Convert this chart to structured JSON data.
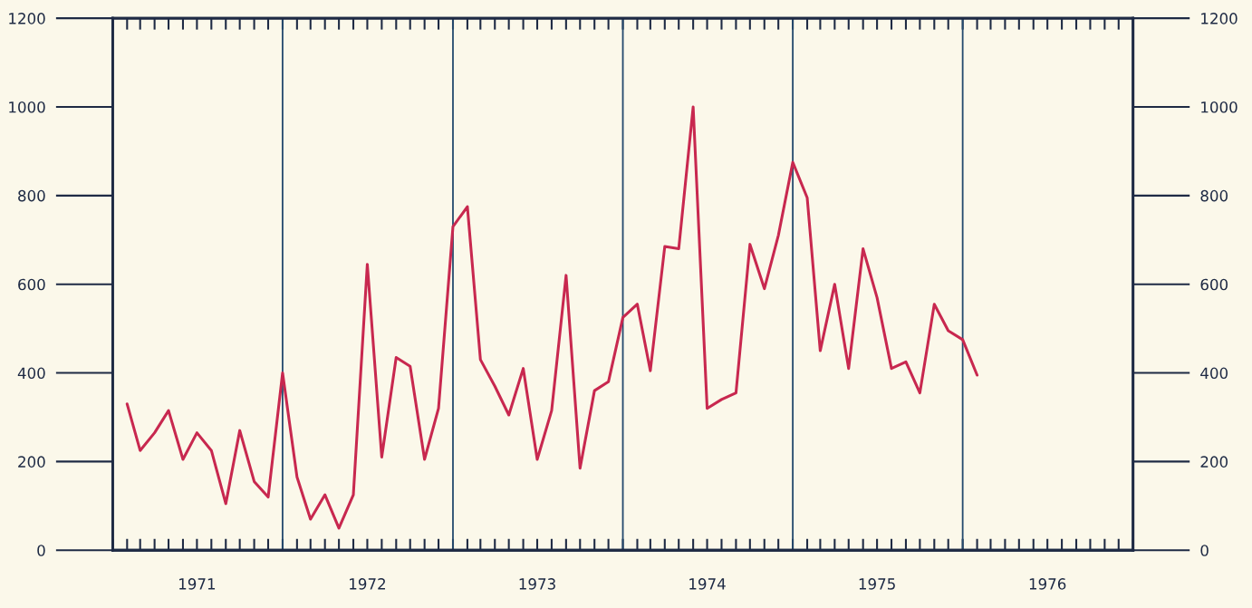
{
  "chart_data": {
    "type": "line",
    "x": [
      "1971-02",
      "1971-03",
      "1971-04",
      "1971-05",
      "1971-06",
      "1971-07",
      "1971-08",
      "1971-09",
      "1971-10",
      "1971-11",
      "1971-12",
      "1972-01",
      "1972-02",
      "1972-03",
      "1972-04",
      "1972-05",
      "1972-06",
      "1972-07",
      "1972-08",
      "1972-09",
      "1972-10",
      "1972-11",
      "1972-12",
      "1973-01",
      "1973-02",
      "1973-03",
      "1973-04",
      "1973-05",
      "1973-06",
      "1973-07",
      "1973-08",
      "1973-09",
      "1973-10",
      "1973-11",
      "1973-12",
      "1974-01",
      "1974-02",
      "1974-03",
      "1974-04",
      "1974-05",
      "1974-06",
      "1974-07",
      "1974-08",
      "1974-09",
      "1974-10",
      "1974-11",
      "1974-12",
      "1975-01",
      "1975-02",
      "1975-03",
      "1975-04",
      "1975-05",
      "1975-06",
      "1975-07",
      "1975-08",
      "1975-09",
      "1975-10",
      "1975-11",
      "1975-12",
      "1976-01",
      "1976-02"
    ],
    "series": [
      {
        "color": "#c8284f",
        "values": [
          330,
          225,
          265,
          315,
          205,
          265,
          225,
          105,
          270,
          155,
          120,
          400,
          165,
          70,
          125,
          50,
          125,
          645,
          210,
          435,
          415,
          205,
          320,
          730,
          775,
          430,
          370,
          305,
          410,
          205,
          315,
          620,
          185,
          360,
          380,
          525,
          555,
          405,
          685,
          680,
          1000,
          320,
          340,
          355,
          690,
          590,
          710,
          875,
          795,
          450,
          600,
          410,
          680,
          570,
          410,
          425,
          355,
          555,
          495,
          475,
          395
        ]
      }
    ],
    "xlim": [
      "1971-01",
      "1977-01"
    ],
    "xticks": [
      {
        "value": "1971-01",
        "label": null
      },
      {
        "value": "1971-02",
        "label": null
      },
      {
        "value": "1971-03",
        "label": null
      },
      {
        "value": "1971-04",
        "label": null
      },
      {
        "value": "1971-05",
        "label": null
      },
      {
        "value": "1971-06",
        "label": null
      },
      {
        "value": "1971-07",
        "label": "1971"
      },
      {
        "value": "1971-08",
        "label": null
      },
      {
        "value": "1971-09",
        "label": null
      },
      {
        "value": "1971-10",
        "label": null
      },
      {
        "value": "1971-11",
        "label": null
      },
      {
        "value": "1971-12",
        "label": null
      },
      {
        "value": "1972-01",
        "label": null
      },
      {
        "value": "1972-02",
        "label": null
      },
      {
        "value": "1972-03",
        "label": null
      },
      {
        "value": "1972-04",
        "label": null
      },
      {
        "value": "1972-05",
        "label": null
      },
      {
        "value": "1972-06",
        "label": null
      },
      {
        "value": "1972-07",
        "label": "1972"
      },
      {
        "value": "1972-08",
        "label": null
      },
      {
        "value": "1972-09",
        "label": null
      },
      {
        "value": "1972-10",
        "label": null
      },
      {
        "value": "1972-11",
        "label": null
      },
      {
        "value": "1972-12",
        "label": null
      },
      {
        "value": "1973-01",
        "label": null
      },
      {
        "value": "1973-02",
        "label": null
      },
      {
        "value": "1973-03",
        "label": null
      },
      {
        "value": "1973-04",
        "label": null
      },
      {
        "value": "1973-05",
        "label": null
      },
      {
        "value": "1973-06",
        "label": null
      },
      {
        "value": "1973-07",
        "label": "1973"
      },
      {
        "value": "1973-08",
        "label": null
      },
      {
        "value": "1973-09",
        "label": null
      },
      {
        "value": "1973-10",
        "label": null
      },
      {
        "value": "1973-11",
        "label": null
      },
      {
        "value": "1973-12",
        "label": null
      },
      {
        "value": "1974-01",
        "label": null
      },
      {
        "value": "1974-02",
        "label": null
      },
      {
        "value": "1974-03",
        "label": null
      },
      {
        "value": "1974-04",
        "label": null
      },
      {
        "value": "1974-05",
        "label": null
      },
      {
        "value": "1974-06",
        "label": null
      },
      {
        "value": "1974-07",
        "label": "1974"
      },
      {
        "value": "1974-08",
        "label": null
      },
      {
        "value": "1974-09",
        "label": null
      },
      {
        "value": "1974-10",
        "label": null
      },
      {
        "value": "1974-11",
        "label": null
      },
      {
        "value": "1974-12",
        "label": null
      },
      {
        "value": "1975-01",
        "label": null
      },
      {
        "value": "1975-02",
        "label": null
      },
      {
        "value": "1975-03",
        "label": null
      },
      {
        "value": "1975-04",
        "label": null
      },
      {
        "value": "1975-05",
        "label": null
      },
      {
        "value": "1975-06",
        "label": null
      },
      {
        "value": "1975-07",
        "label": "1975"
      },
      {
        "value": "1975-08",
        "label": null
      },
      {
        "value": "1975-09",
        "label": null
      },
      {
        "value": "1975-10",
        "label": null
      },
      {
        "value": "1975-11",
        "label": null
      },
      {
        "value": "1975-12",
        "label": null
      },
      {
        "value": "1976-01",
        "label": null
      },
      {
        "value": "1976-02",
        "label": null
      },
      {
        "value": "1976-03",
        "label": null
      },
      {
        "value": "1976-04",
        "label": null
      },
      {
        "value": "1976-05",
        "label": null
      },
      {
        "value": "1976-06",
        "label": null
      },
      {
        "value": "1976-07",
        "label": "1976"
      },
      {
        "value": "1976-08",
        "label": null
      },
      {
        "value": "1976-09",
        "label": null
      },
      {
        "value": "1976-10",
        "label": null
      },
      {
        "value": "1976-11",
        "label": null
      },
      {
        "value": "1976-12",
        "label": null
      },
      {
        "value": "1977-01",
        "label": null
      }
    ],
    "ylim": [
      0,
      1200
    ],
    "yticks": [
      0,
      200,
      400,
      600,
      800,
      1000,
      1200
    ],
    "y2lim": [
      0,
      1200
    ],
    "y2ticks": [
      0,
      200,
      400,
      600,
      800,
      1000,
      1200
    ],
    "ref_lines": [
      {
        "axis": "x",
        "value": "1972-01",
        "color": "#244a6e"
      },
      {
        "axis": "x",
        "value": "1973-01",
        "color": "#244a6e"
      },
      {
        "axis": "x",
        "value": "1974-01",
        "color": "#244a6e"
      },
      {
        "axis": "x",
        "value": "1975-01",
        "color": "#244a6e"
      },
      {
        "axis": "x",
        "value": "1976-01",
        "color": "#244a6e"
      }
    ],
    "grid": false,
    "legend": false,
    "marker": "none",
    "line_style": "solid"
  }
}
